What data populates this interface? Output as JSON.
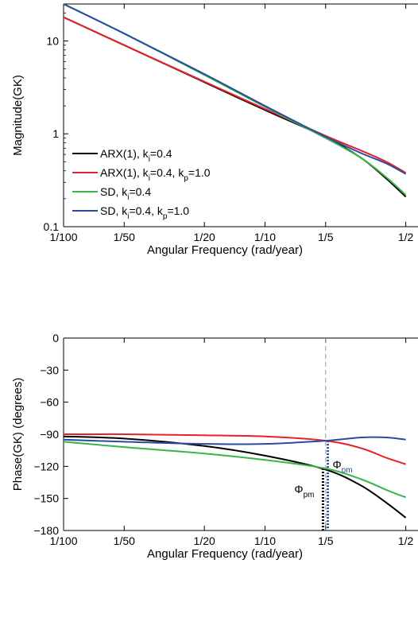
{
  "chart_data": [
    {
      "type": "line",
      "x_scale": "log",
      "y_scale": "log",
      "xlabel": "Angular Frequency (rad/year)",
      "ylabel": "Magnitude(GK)",
      "xlim": [
        0.01,
        0.5
      ],
      "ylim": [
        0.1,
        25
      ],
      "xticks": [
        0.01,
        0.02,
        0.05,
        0.1,
        0.2,
        0.5
      ],
      "xtick_labels": [
        "1/100",
        "1/50",
        "1/20",
        "1/10",
        "1/5",
        "1/2"
      ],
      "yticks": [
        0.1,
        1,
        10
      ],
      "ytick_labels": [
        "0.1",
        "1",
        "10"
      ],
      "legend_position": "bottom-left",
      "grid": false,
      "series": [
        {
          "name": "ARX(1), k_i=0.4",
          "color": "#000000",
          "x": [
            0.01,
            0.02,
            0.05,
            0.1,
            0.2,
            0.3,
            0.4,
            0.5
          ],
          "y": [
            18.0,
            9.0,
            3.6,
            1.8,
            0.92,
            0.55,
            0.33,
            0.21
          ]
        },
        {
          "name": "ARX(1), k_i=0.4, k_p=1.0",
          "color": "#e8202a",
          "x": [
            0.01,
            0.02,
            0.05,
            0.1,
            0.2,
            0.3,
            0.4,
            0.5
          ],
          "y": [
            18.0,
            9.0,
            3.65,
            1.85,
            0.95,
            0.66,
            0.5,
            0.38
          ]
        },
        {
          "name": "SD, k_i=0.4",
          "color": "#3ab54a",
          "x": [
            0.01,
            0.02,
            0.05,
            0.1,
            0.2,
            0.3,
            0.4,
            0.5
          ],
          "y": [
            25.0,
            12.0,
            4.3,
            1.95,
            0.9,
            0.55,
            0.34,
            0.22
          ]
        },
        {
          "name": "SD, k_i=0.4, k_p=1.0",
          "color": "#2b4ba3",
          "x": [
            0.01,
            0.02,
            0.05,
            0.1,
            0.2,
            0.3,
            0.4,
            0.5
          ],
          "y": [
            25.0,
            12.0,
            4.4,
            2.0,
            0.93,
            0.62,
            0.48,
            0.37
          ]
        }
      ],
      "legend": [
        {
          "pre": "ARX(1), k",
          "parts": [
            [
              "i",
              "=0.4"
            ]
          ],
          "color": "#000000"
        },
        {
          "pre": "ARX(1), k",
          "parts": [
            [
              "i",
              "=0.4, k"
            ],
            [
              "p",
              "=1.0"
            ]
          ],
          "color": "#e8202a"
        },
        {
          "pre": "SD, k",
          "parts": [
            [
              "i",
              "=0.4"
            ]
          ],
          "color": "#3ab54a"
        },
        {
          "pre": "SD, k",
          "parts": [
            [
              "i",
              "=0.4, k"
            ],
            [
              "p",
              "=1.0"
            ]
          ],
          "color": "#2b4ba3"
        }
      ]
    },
    {
      "type": "line",
      "x_scale": "log",
      "xlabel": "Angular Frequency (rad/year)",
      "ylabel": "Phase(GK) (degrees)",
      "xlim": [
        0.01,
        0.5
      ],
      "ylim": [
        -180,
        0
      ],
      "xticks": [
        0.01,
        0.02,
        0.05,
        0.1,
        0.2,
        0.5
      ],
      "xtick_labels": [
        "1/100",
        "1/50",
        "1/20",
        "1/10",
        "1/5",
        "1/2"
      ],
      "yticks": [
        0,
        -30,
        -60,
        -90,
        -120,
        -150,
        -180
      ],
      "ytick_labels": [
        "0",
        "−30",
        "−60",
        "−90",
        "−120",
        "−150",
        "−180"
      ],
      "grid": false,
      "series": [
        {
          "name": "ARX(1), k_i=0.4",
          "color": "#000000",
          "x": [
            0.01,
            0.02,
            0.05,
            0.1,
            0.2,
            0.3,
            0.4,
            0.5
          ],
          "y": [
            -92,
            -94,
            -101,
            -110,
            -123,
            -138,
            -154,
            -168
          ]
        },
        {
          "name": "ARX(1), k_i=0.4, k_p=1.0",
          "color": "#e8202a",
          "x": [
            0.01,
            0.02,
            0.05,
            0.1,
            0.2,
            0.3,
            0.4,
            0.5
          ],
          "y": [
            -90,
            -90,
            -91,
            -92,
            -96,
            -103,
            -112,
            -118
          ]
        },
        {
          "name": "SD, k_i=0.4",
          "color": "#3ab54a",
          "x": [
            0.01,
            0.02,
            0.05,
            0.1,
            0.2,
            0.3,
            0.4,
            0.5
          ],
          "y": [
            -97,
            -102,
            -108,
            -114,
            -122,
            -132,
            -142,
            -149
          ]
        },
        {
          "name": "SD, k_i=0.4, k_p=1.0",
          "color": "#2b4ba3",
          "x": [
            0.01,
            0.02,
            0.05,
            0.1,
            0.2,
            0.3,
            0.4,
            0.5
          ],
          "y": [
            -95,
            -97,
            -99,
            -99,
            -96,
            -93,
            -93,
            -95
          ]
        }
      ],
      "reference_line": {
        "y": -180,
        "color": "#000000"
      },
      "crossover_line": {
        "x": 0.2,
        "color": "#999999",
        "style": "dashed"
      },
      "phase_margins": [
        {
          "label": "Φ",
          "sub": "pm",
          "x": 0.194,
          "y_top": -122,
          "color": "#000000"
        },
        {
          "label": "Φ",
          "sub": "pm",
          "x": 0.205,
          "y_top": -96,
          "color": "#2b4ba3"
        }
      ]
    }
  ]
}
